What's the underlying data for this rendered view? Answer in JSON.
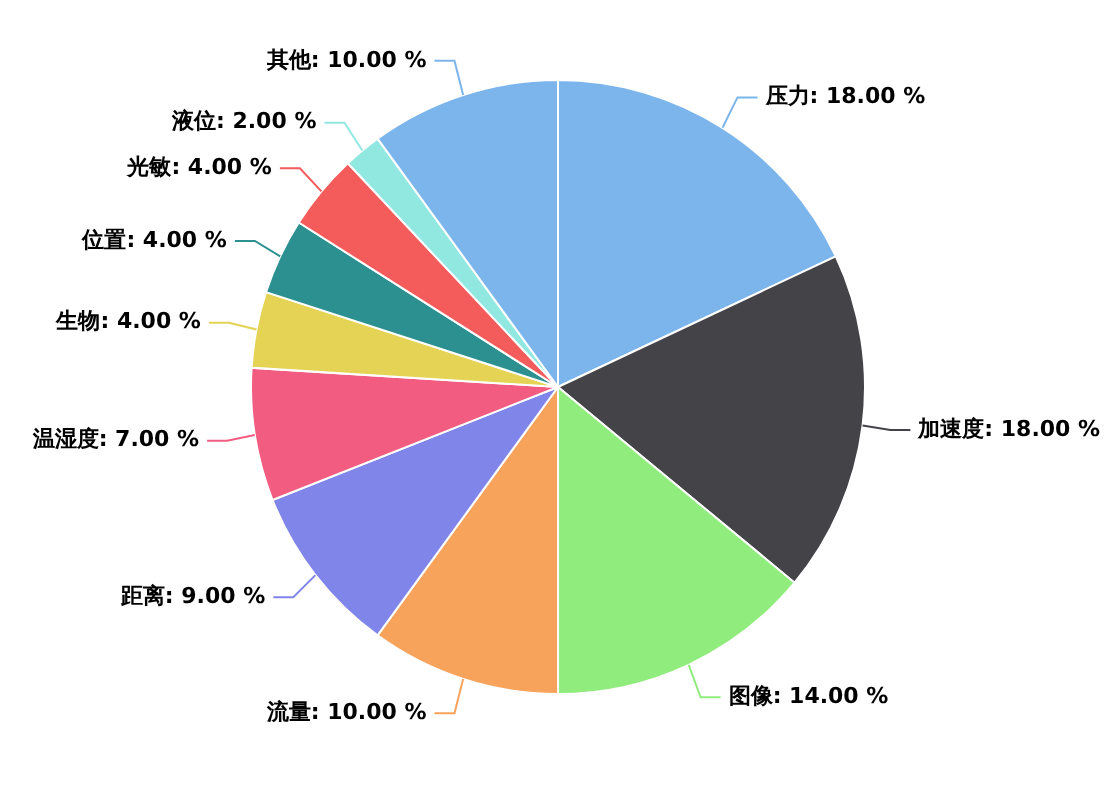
{
  "chart_data": {
    "type": "pie",
    "categories": [
      "压力",
      "加速度",
      "图像",
      "流量",
      "距离",
      "温湿度",
      "生物",
      "位置",
      "光敏",
      "液位",
      "其他"
    ],
    "values": [
      18,
      18,
      14,
      10,
      9,
      7,
      4,
      4,
      4,
      2,
      10
    ],
    "value_labels": [
      "18.00 %",
      "18.00 %",
      "14.00 %",
      "10.00 %",
      "9.00 %",
      "7.00 %",
      "4.00 %",
      "4.00 %",
      "4.00 %",
      "2.00 %",
      "10.00 %"
    ],
    "colors": [
      "#7cb5ec",
      "#434348",
      "#90ed7d",
      "#f7a35c",
      "#8085e9",
      "#f15c80",
      "#e4d354",
      "#2b908f",
      "#f45b5b",
      "#91e8e1",
      "#7cb5ec"
    ],
    "legend": false
  }
}
